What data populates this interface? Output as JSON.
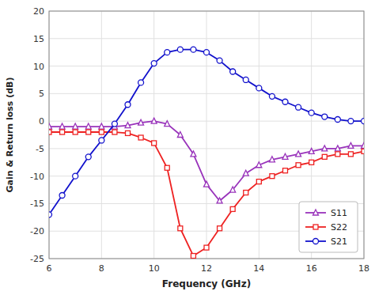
{
  "chart_data": {
    "type": "line",
    "xlabel": "Frequency (GHz)",
    "ylabel": "Gain & Return loss (dB)",
    "x": [
      6.0,
      6.5,
      7.0,
      7.5,
      8.0,
      8.5,
      9.0,
      9.5,
      10.0,
      10.5,
      11.0,
      11.5,
      12.0,
      12.5,
      13.0,
      13.5,
      14.0,
      14.5,
      15.0,
      15.5,
      16.0,
      16.5,
      17.0,
      17.5,
      18.0
    ],
    "xlim": [
      6,
      18
    ],
    "xticks": [
      6,
      8,
      10,
      12,
      14,
      16,
      18
    ],
    "ylim": [
      -25,
      20
    ],
    "yticks": [
      -25,
      -20,
      -15,
      -10,
      -5,
      0,
      5,
      10,
      15,
      20
    ],
    "grid": true,
    "legend": "lower right",
    "series": [
      {
        "name": "S11",
        "color": "#9933BB",
        "marker": "triangle",
        "values": [
          -1.0,
          -1.0,
          -1.0,
          -1.0,
          -1.0,
          -1.0,
          -0.8,
          -0.3,
          0.0,
          -0.5,
          -2.5,
          -6.0,
          -11.5,
          -14.5,
          -12.5,
          -9.5,
          -8.0,
          -7.0,
          -6.5,
          -6.0,
          -5.5,
          -5.0,
          -5.0,
          -4.5,
          -4.5
        ]
      },
      {
        "name": "S22",
        "color": "#EE2222",
        "marker": "square",
        "values": [
          -2.0,
          -2.0,
          -2.0,
          -2.0,
          -2.0,
          -2.0,
          -2.2,
          -3.0,
          -4.0,
          -8.5,
          -19.5,
          -24.5,
          -23.0,
          -19.5,
          -16.0,
          -13.0,
          -11.0,
          -10.0,
          -9.0,
          -8.0,
          -7.5,
          -6.5,
          -6.0,
          -6.0,
          -5.5
        ]
      },
      {
        "name": "S21",
        "color": "#1111CC",
        "marker": "circle",
        "values": [
          -17.0,
          -13.5,
          -10.0,
          -6.5,
          -3.5,
          -0.5,
          3.0,
          7.0,
          10.5,
          12.5,
          13.0,
          13.0,
          12.5,
          11.0,
          9.0,
          7.5,
          6.0,
          4.5,
          3.5,
          2.5,
          1.5,
          0.8,
          0.3,
          0.0,
          0.0
        ]
      }
    ]
  }
}
